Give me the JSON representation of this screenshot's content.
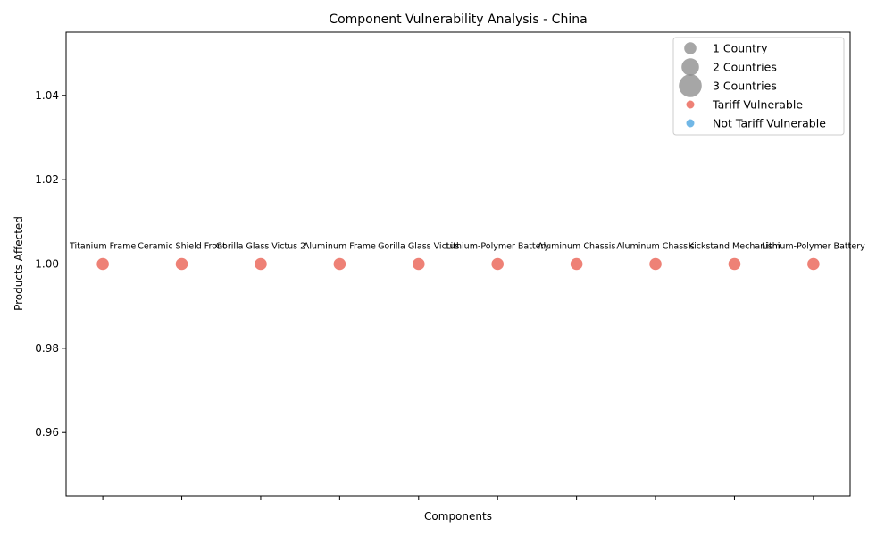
{
  "chart_data": {
    "type": "scatter",
    "title": "Component Vulnerability Analysis - China",
    "xlabel": "Components",
    "ylabel": "Products Affected",
    "ylim": [
      0.945,
      1.055
    ],
    "yticks": [
      0.96,
      0.98,
      1.0,
      1.02,
      1.04
    ],
    "xticks_labeled": false,
    "grid": false,
    "legend_position": "top-right",
    "colors": {
      "tariff_vulnerable": "#e74c3c",
      "not_tariff_vulnerable": "#3498db",
      "size_legend": "#808080"
    },
    "points": [
      {
        "label": "Titanium Frame",
        "x": 0,
        "y": 1,
        "countries": 1,
        "tariff_vulnerable": true
      },
      {
        "label": "Ceramic Shield Front",
        "x": 1,
        "y": 1,
        "countries": 1,
        "tariff_vulnerable": true
      },
      {
        "label": "Gorilla Glass Victus 2",
        "x": 2,
        "y": 1,
        "countries": 1,
        "tariff_vulnerable": true
      },
      {
        "label": "Aluminum Frame",
        "x": 3,
        "y": 1,
        "countries": 1,
        "tariff_vulnerable": true
      },
      {
        "label": "Gorilla Glass Victus",
        "x": 4,
        "y": 1,
        "countries": 1,
        "tariff_vulnerable": true
      },
      {
        "label": "Lithium-Polymer Battery",
        "x": 5,
        "y": 1,
        "countries": 1,
        "tariff_vulnerable": true
      },
      {
        "label": "Aluminum Chassis",
        "x": 6,
        "y": 1,
        "countries": 1,
        "tariff_vulnerable": true
      },
      {
        "label": "Aluminum Chassis",
        "x": 7,
        "y": 1,
        "countries": 1,
        "tariff_vulnerable": true
      },
      {
        "label": "Kickstand Mechanism",
        "x": 8,
        "y": 1,
        "countries": 1,
        "tariff_vulnerable": true
      },
      {
        "label": "Lithium-Polymer Battery",
        "x": 9,
        "y": 1,
        "countries": 1,
        "tariff_vulnerable": true
      }
    ],
    "legend": [
      {
        "label": "1 Country",
        "kind": "size",
        "countries": 1
      },
      {
        "label": "2 Countries",
        "kind": "size",
        "countries": 2
      },
      {
        "label": "3 Countries",
        "kind": "size",
        "countries": 3
      },
      {
        "label": "Tariff Vulnerable",
        "kind": "color",
        "key": "tariff_vulnerable"
      },
      {
        "label": "Not Tariff Vulnerable",
        "kind": "color",
        "key": "not_tariff_vulnerable"
      }
    ]
  }
}
